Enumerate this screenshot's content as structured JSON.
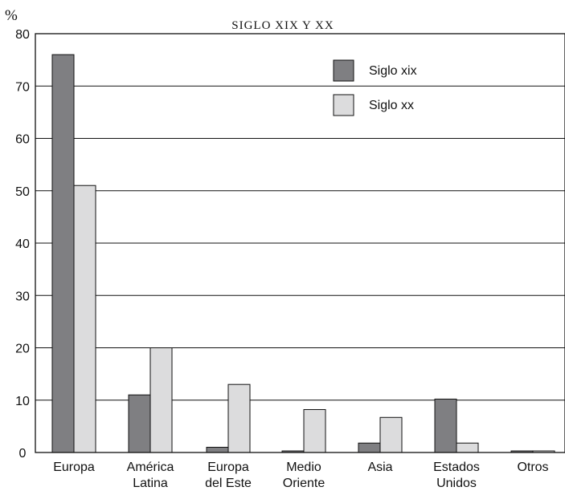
{
  "chart_data": {
    "type": "bar",
    "title": "SIGLO XIX Y XX",
    "ylabel": "%",
    "xlabel": "",
    "ylim": [
      0,
      80
    ],
    "yticks": [
      0,
      10,
      20,
      30,
      40,
      50,
      60,
      70,
      80
    ],
    "grid": true,
    "legend_position": "top-right",
    "categories": [
      [
        "Europa"
      ],
      [
        "América",
        "Latina"
      ],
      [
        "Europa",
        "del Este"
      ],
      [
        "Medio",
        "Oriente"
      ],
      [
        "Asia"
      ],
      [
        "Estados",
        "Unidos"
      ],
      [
        "Otros"
      ]
    ],
    "series": [
      {
        "name": "Siglo xix",
        "color": "#7f7f82",
        "values": [
          76,
          11,
          1,
          0.3,
          1.8,
          10.2,
          0.3
        ]
      },
      {
        "name": "Siglo xx",
        "color": "#dcdcdd",
        "values": [
          51,
          20,
          13,
          8.2,
          6.7,
          1.8,
          0.3
        ]
      }
    ]
  }
}
